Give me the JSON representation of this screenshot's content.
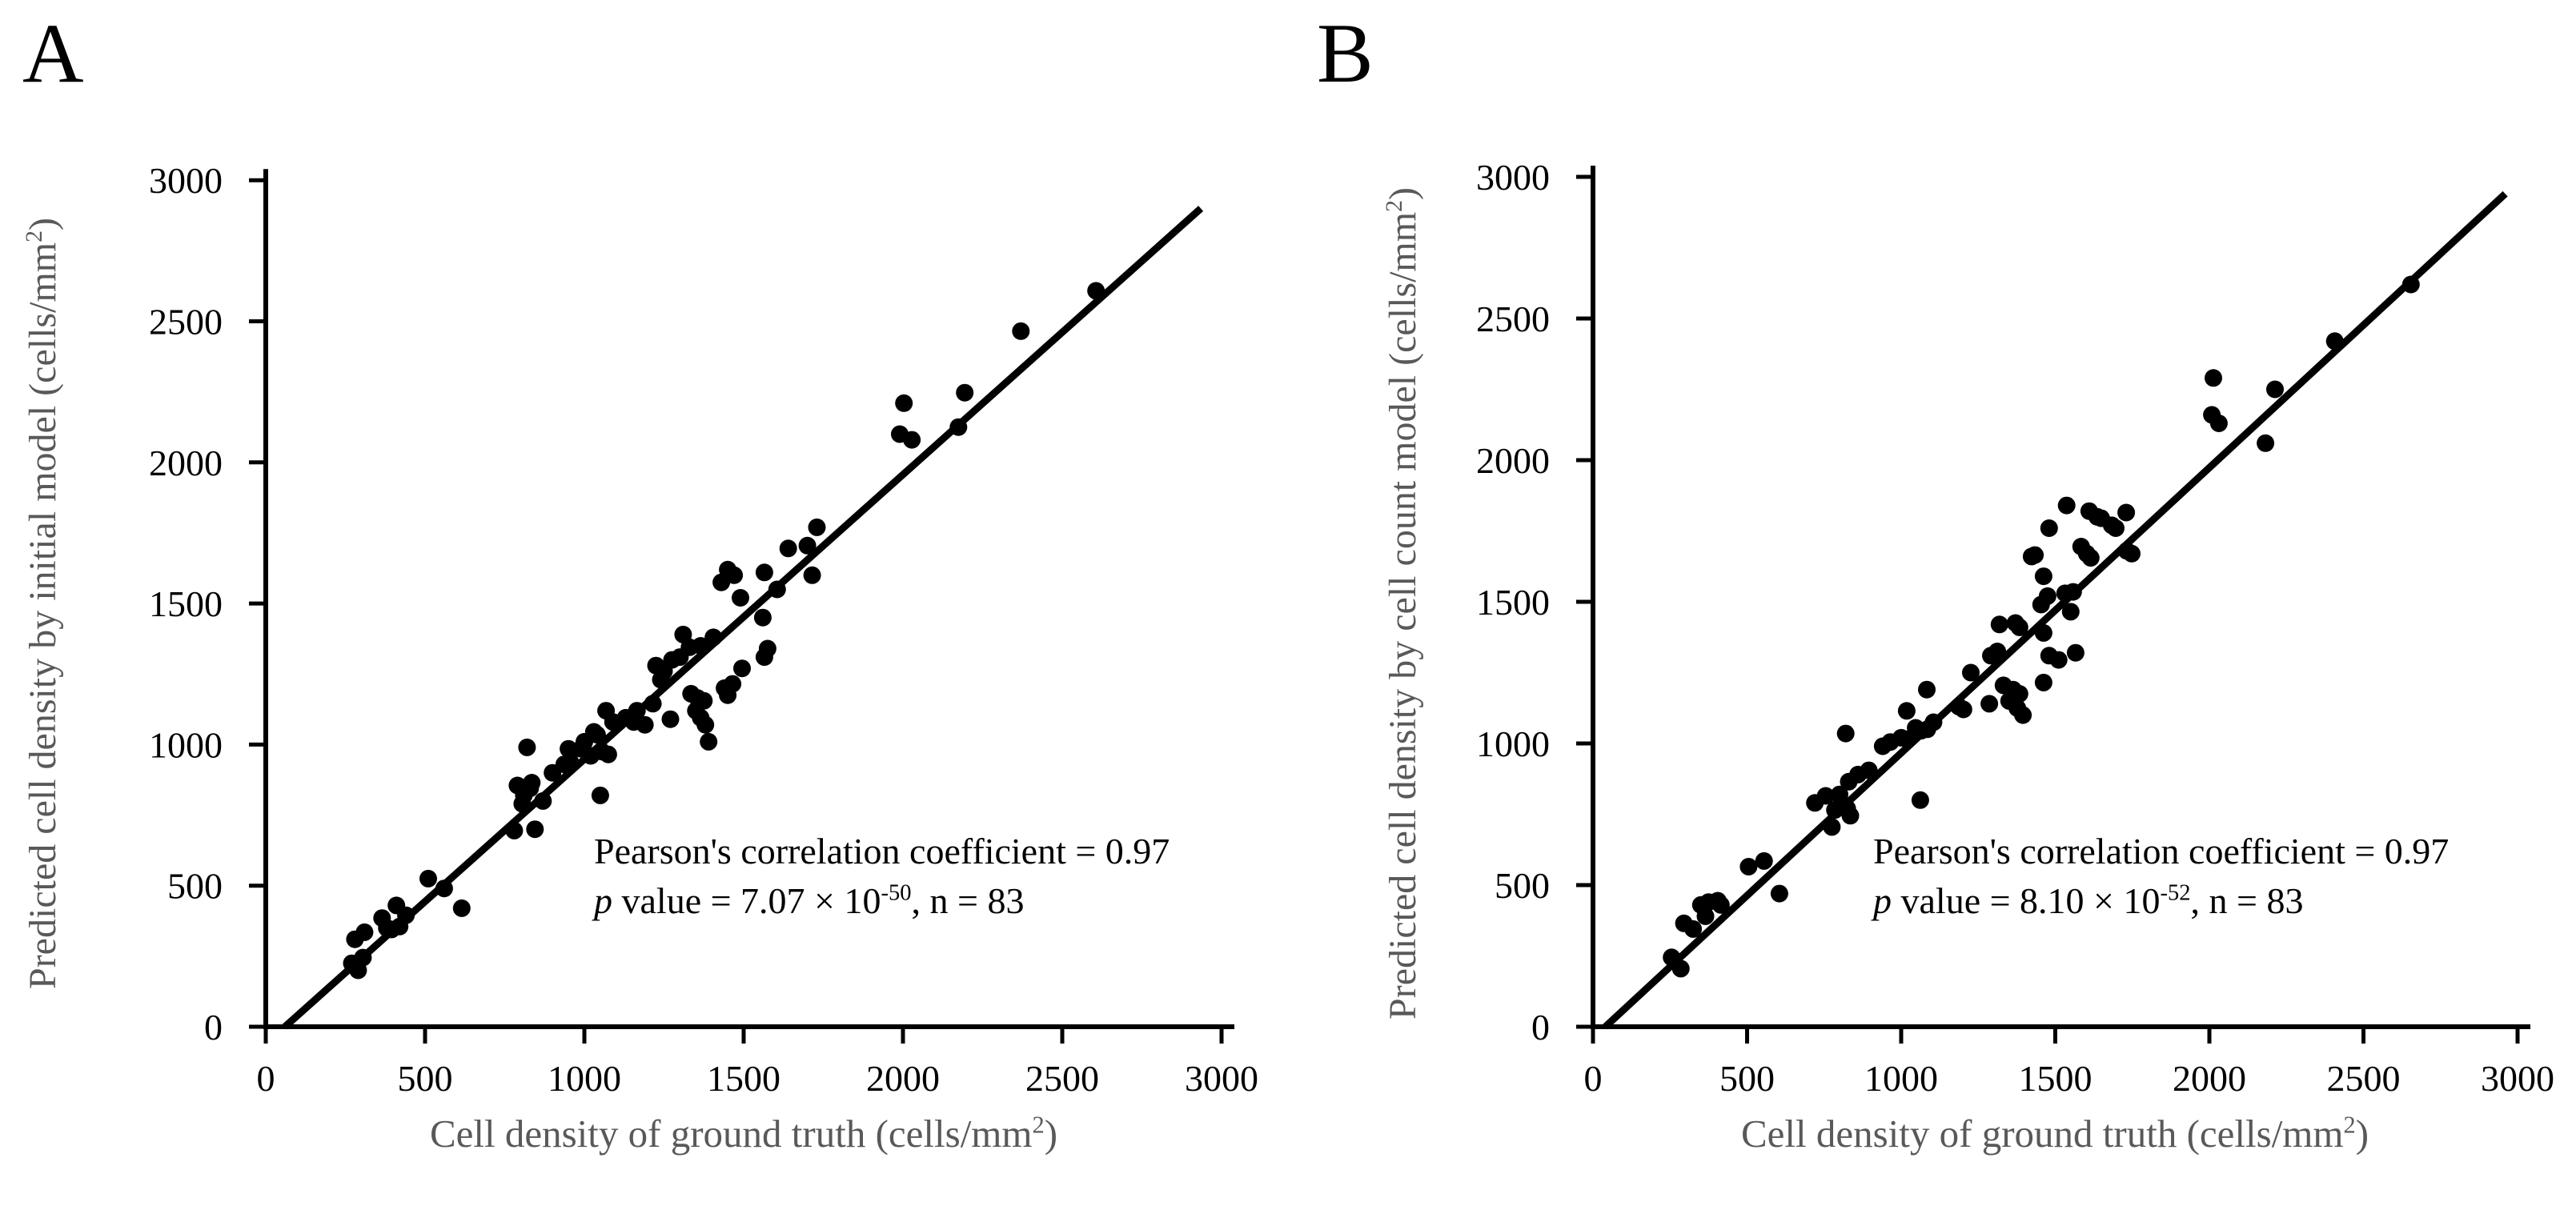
{
  "figure_title": "Two-panel scatter comparison of predicted vs ground truth cell density",
  "colors": {
    "background": "#ffffff",
    "point": "#000000",
    "axis": "#000000",
    "trend_line": "#000000",
    "tick_label": "#000000",
    "axis_title": "#595959"
  },
  "chart_data": [
    {
      "id": "a",
      "type": "scatter",
      "panel_label": "A",
      "xlabel_parts": {
        "main": "Cell density of ground truth (cells/mm",
        "sup": "2",
        "close": ")"
      },
      "ylabel_parts": {
        "main": "Predicted cell density by initial model (cells/mm",
        "sup": "2",
        "close": ")"
      },
      "xlim": [
        0,
        3000
      ],
      "ylim": [
        0,
        3000
      ],
      "xticks": [
        0,
        500,
        1000,
        1500,
        2000,
        2500,
        3000
      ],
      "yticks": [
        0,
        500,
        1000,
        1500,
        2000,
        2500,
        3000
      ],
      "grid": false,
      "legend": "none",
      "annotation": {
        "line1": "Pearson's correlation coefficient = 0.97",
        "p_symbol": "p",
        "line2_pre": " value = 7.07 × 10",
        "line2_exp": "-50",
        "line2_post": ", n = 83"
      },
      "n": 83,
      "pearson_r": 0.97,
      "trendline": {
        "x1": 60,
        "y1": 0,
        "x2": 2935,
        "y2": 2900
      },
      "points": [
        [
          270,
          225
        ],
        [
          290,
          200
        ],
        [
          305,
          245
        ],
        [
          280,
          310
        ],
        [
          310,
          335
        ],
        [
          365,
          385
        ],
        [
          380,
          350
        ],
        [
          395,
          345
        ],
        [
          410,
          430
        ],
        [
          420,
          355
        ],
        [
          440,
          395
        ],
        [
          510,
          525
        ],
        [
          560,
          490
        ],
        [
          615,
          420
        ],
        [
          780,
          695
        ],
        [
          790,
          855
        ],
        [
          805,
          790
        ],
        [
          810,
          820
        ],
        [
          830,
          845
        ],
        [
          835,
          865
        ],
        [
          820,
          990
        ],
        [
          845,
          700
        ],
        [
          870,
          800
        ],
        [
          900,
          900
        ],
        [
          937,
          930
        ],
        [
          950,
          985
        ],
        [
          955,
          940
        ],
        [
          990,
          985
        ],
        [
          1000,
          1010
        ],
        [
          1020,
          960
        ],
        [
          1030,
          1045
        ],
        [
          1040,
          1035
        ],
        [
          1055,
          975
        ],
        [
          1068,
          1120
        ],
        [
          1075,
          965
        ],
        [
          1050,
          820
        ],
        [
          1090,
          1080
        ],
        [
          1130,
          1095
        ],
        [
          1155,
          1080
        ],
        [
          1165,
          1120
        ],
        [
          1190,
          1070
        ],
        [
          1215,
          1145
        ],
        [
          1240,
          1230
        ],
        [
          1270,
          1090
        ],
        [
          1225,
          1280
        ],
        [
          1250,
          1260
        ],
        [
          1275,
          1300
        ],
        [
          1300,
          1310
        ],
        [
          1310,
          1390
        ],
        [
          1330,
          1345
        ],
        [
          1365,
          1350
        ],
        [
          1335,
          1180
        ],
        [
          1355,
          1165
        ],
        [
          1375,
          1155
        ],
        [
          1350,
          1120
        ],
        [
          1365,
          1095
        ],
        [
          1380,
          1070
        ],
        [
          1390,
          1010
        ],
        [
          1405,
          1380
        ],
        [
          1440,
          1200
        ],
        [
          1465,
          1215
        ],
        [
          1450,
          1175
        ],
        [
          1495,
          1270
        ],
        [
          1430,
          1575
        ],
        [
          1450,
          1620
        ],
        [
          1470,
          1600
        ],
        [
          1490,
          1520
        ],
        [
          1560,
          1450
        ],
        [
          1565,
          1610
        ],
        [
          1605,
          1550
        ],
        [
          1575,
          1340
        ],
        [
          1565,
          1310
        ],
        [
          1640,
          1695
        ],
        [
          1700,
          1705
        ],
        [
          1715,
          1600
        ],
        [
          1730,
          1770
        ],
        [
          1990,
          2100
        ],
        [
          2003,
          2210
        ],
        [
          2028,
          2080
        ],
        [
          2174,
          2125
        ],
        [
          2194,
          2247
        ],
        [
          2370,
          2465
        ],
        [
          2606,
          2608
        ]
      ]
    },
    {
      "id": "b",
      "type": "scatter",
      "panel_label": "B",
      "xlabel_parts": {
        "main": "Cell density of ground truth (cells/mm",
        "sup": "2",
        "close": ")"
      },
      "ylabel_parts": {
        "main": "Predicted cell density by cell count model (cells/mm",
        "sup": "2",
        "close": ")"
      },
      "xlim": [
        0,
        3000
      ],
      "ylim": [
        0,
        3000
      ],
      "xticks": [
        0,
        500,
        1000,
        1500,
        2000,
        2500,
        3000
      ],
      "yticks": [
        0,
        500,
        1000,
        1500,
        2000,
        2500,
        3000
      ],
      "grid": false,
      "legend": "none",
      "annotation": {
        "line1": "Pearson's correlation coefficient = 0.97",
        "p_symbol": "p",
        "line2_pre": " value = 8.10 × 10",
        "line2_exp": "-52",
        "line2_post": ", n = 83"
      },
      "n": 83,
      "pearson_r": 0.97,
      "trendline": {
        "x1": 40,
        "y1": 0,
        "x2": 2960,
        "y2": 2940
      },
      "points": [
        [
          255,
          245
        ],
        [
          285,
          205
        ],
        [
          295,
          365
        ],
        [
          325,
          345
        ],
        [
          350,
          430
        ],
        [
          375,
          440
        ],
        [
          405,
          445
        ],
        [
          415,
          430
        ],
        [
          365,
          390
        ],
        [
          505,
          565
        ],
        [
          555,
          585
        ],
        [
          605,
          470
        ],
        [
          720,
          790
        ],
        [
          755,
          815
        ],
        [
          785,
          765
        ],
        [
          805,
          785
        ],
        [
          825,
          770
        ],
        [
          835,
          745
        ],
        [
          775,
          705
        ],
        [
          820,
          1035
        ],
        [
          800,
          820
        ],
        [
          830,
          865
        ],
        [
          860,
          890
        ],
        [
          895,
          905
        ],
        [
          940,
          990
        ],
        [
          965,
          1005
        ],
        [
          1000,
          1020
        ],
        [
          1020,
          1015
        ],
        [
          1047,
          1055
        ],
        [
          1065,
          1045
        ],
        [
          1085,
          1050
        ],
        [
          1018,
          1115
        ],
        [
          1083,
          1190
        ],
        [
          1062,
          800
        ],
        [
          1105,
          1075
        ],
        [
          1187,
          1130
        ],
        [
          1202,
          1120
        ],
        [
          1226,
          1250
        ],
        [
          1286,
          1140
        ],
        [
          1291,
          1310
        ],
        [
          1312,
          1325
        ],
        [
          1319,
          1420
        ],
        [
          1371,
          1425
        ],
        [
          1384,
          1410
        ],
        [
          1332,
          1205
        ],
        [
          1363,
          1190
        ],
        [
          1384,
          1175
        ],
        [
          1350,
          1150
        ],
        [
          1395,
          1100
        ],
        [
          1377,
          1125
        ],
        [
          1434,
          1665
        ],
        [
          1454,
          1490
        ],
        [
          1475,
          1520
        ],
        [
          1462,
          1390
        ],
        [
          1480,
          1310
        ],
        [
          1511,
          1295
        ],
        [
          1462,
          1215
        ],
        [
          1532,
          1530
        ],
        [
          1558,
          1535
        ],
        [
          1550,
          1465
        ],
        [
          1566,
          1320
        ],
        [
          1462,
          1590
        ],
        [
          1537,
          1840
        ],
        [
          1610,
          1820
        ],
        [
          1636,
          1800
        ],
        [
          1649,
          1795
        ],
        [
          1683,
          1770
        ],
        [
          1696,
          1760
        ],
        [
          1584,
          1695
        ],
        [
          1602,
          1670
        ],
        [
          1615,
          1655
        ],
        [
          1423,
          1660
        ],
        [
          1732,
          1680
        ],
        [
          1748,
          1670
        ],
        [
          1730,
          1815
        ],
        [
          1480,
          1760
        ],
        [
          2013,
          2290
        ],
        [
          2008,
          2160
        ],
        [
          2031,
          2130
        ],
        [
          2182,
          2060
        ],
        [
          2213,
          2250
        ],
        [
          2407,
          2420
        ],
        [
          2654,
          2620
        ]
      ]
    }
  ]
}
